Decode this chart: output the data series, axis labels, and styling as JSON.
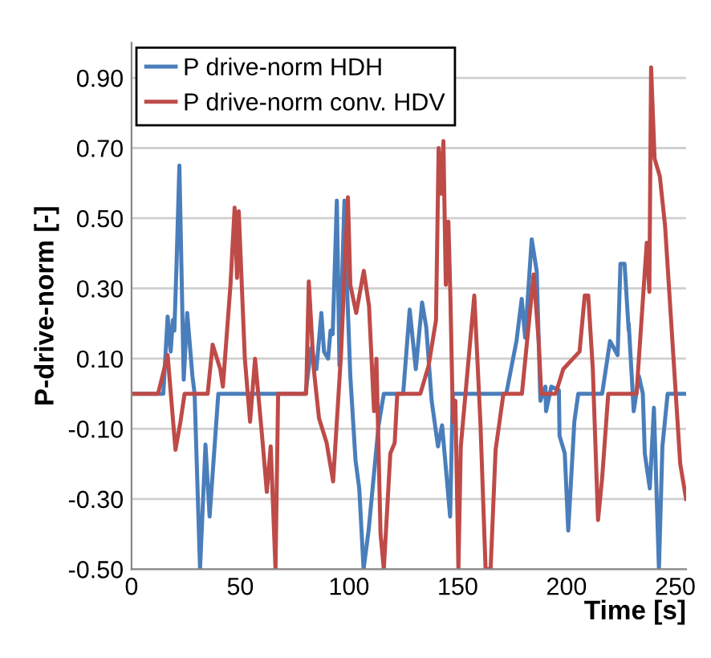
{
  "chart_data": {
    "type": "line",
    "xlabel": "Time [s]",
    "ylabel": "P-drive-norm [-]",
    "xlim": [
      0,
      255
    ],
    "xticks": [
      0,
      50,
      100,
      150,
      200,
      250
    ],
    "ylim": [
      -0.5,
      1.0
    ],
    "yticks": [
      {
        "value": 0.9,
        "label": "0.90"
      },
      {
        "value": 0.7,
        "label": "0.70"
      },
      {
        "value": 0.5,
        "label": "0.50"
      },
      {
        "value": 0.3,
        "label": "0.30"
      },
      {
        "value": 0.1,
        "label": "0.10"
      },
      {
        "value": -0.1,
        "label": "-0.10"
      },
      {
        "value": -0.3,
        "label": "-0.30"
      },
      {
        "value": -0.5,
        "label": "-0.50"
      }
    ],
    "grid": "y",
    "legend": "top left",
    "marker": "none",
    "line_style": "solid",
    "series": [
      {
        "name": "P drive-norm HDH",
        "color": "#4a7ebb",
        "x": [
          0,
          14.6,
          16.6,
          18,
          19,
          19.7,
          20.7,
          22,
          24,
          25.6,
          28,
          29,
          31.5,
          34,
          35.9,
          39.9,
          80,
          82.6,
          85,
          87.3,
          88.5,
          90.4,
          91.5,
          92.5,
          94.4,
          95.6,
          97.9,
          99,
          100.6,
          103,
          104.7,
          106.7,
          109,
          113.6,
          116,
          124.9,
          127.9,
          130.7,
          133.6,
          135.5,
          138,
          140.9,
          142.8,
          146.5,
          147.7,
          172.3,
          177,
          179.4,
          181,
          184,
          186.3,
          188,
          190.3,
          190.6,
          193,
          196.5,
          196.8,
          199.2,
          200.8,
          203.6,
          205.4,
          216.4,
          220,
          223.5,
          224.8,
          226.7,
          228.6,
          228.6,
          230,
          230.9,
          233.3,
          235.1,
          236,
          238.3,
          240.2,
          242.5,
          244.1,
          246.5,
          255
        ],
        "values": [
          0,
          0,
          0.22,
          0.12,
          0.21,
          0.18,
          0.37,
          0.65,
          0.04,
          0.23,
          0.05,
          0,
          -0.5,
          -0.145,
          -0.35,
          0,
          0,
          0.13,
          0.07,
          0.23,
          0.12,
          0.1,
          0.18,
          0.17,
          0.55,
          0.08,
          0.55,
          0.32,
          0.05,
          -0.19,
          -0.27,
          -0.5,
          -0.39,
          -0.09,
          0,
          0,
          0.24,
          0.07,
          0.26,
          0.19,
          -0.02,
          -0.15,
          -0.09,
          -0.35,
          0,
          0,
          0.15,
          0.27,
          0.16,
          0.44,
          0.35,
          -0.02,
          0.02,
          -0.05,
          0.02,
          0.01,
          -0.12,
          -0.17,
          -0.39,
          -0.08,
          0,
          0,
          0.15,
          0.11,
          0.37,
          0.37,
          0.18,
          0.2,
          0.05,
          -0.05,
          0.05,
          0,
          -0.17,
          -0.27,
          -0.04,
          -0.5,
          -0.15,
          0,
          0
        ]
      },
      {
        "name": "P drive-norm conv. HDV",
        "color": "#be4b48",
        "x": [
          0,
          12.2,
          16.6,
          20.2,
          22.5,
          24.4,
          35,
          37.3,
          40.8,
          42,
          45.5,
          47.4,
          48.5,
          49.3,
          52.1,
          54.5,
          56.8,
          60.3,
          62.2,
          64,
          66.2,
          67.4,
          80.3,
          81.5,
          83.8,
          86.2,
          89.7,
          92.7,
          96.3,
          99.5,
          100.6,
          103.3,
          106.8,
          109.2,
          111.5,
          112.6,
          114.5,
          116,
          119,
          121,
          122.2,
          132.8,
          136.6,
          140,
          141.2,
          142.4,
          143.4,
          144.5,
          145.7,
          146.6,
          147.8,
          148.9,
          150.3,
          151.4,
          157.6,
          160.4,
          162.8,
          165.1,
          167.4,
          171,
          179.5,
          184.9,
          187.2,
          188.4,
          195,
          198.5,
          206,
          208.4,
          210,
          212.1,
          214.5,
          216.4,
          219.2,
          232.2,
          236.9,
          238.1,
          238.9,
          240.5,
          242.9,
          245.3,
          248.8,
          252.3,
          255
        ],
        "values": [
          0,
          0,
          0.11,
          -0.16,
          -0.08,
          0,
          0,
          0.14,
          0.07,
          0.02,
          0.31,
          0.53,
          0.33,
          0.52,
          0.1,
          -0.08,
          0.1,
          -0.14,
          -0.28,
          -0.15,
          -0.5,
          0,
          0,
          0.32,
          0.07,
          -0.07,
          -0.14,
          -0.25,
          0.11,
          0.56,
          0.31,
          0.23,
          0.35,
          0.25,
          -0.05,
          0.1,
          -0.4,
          -0.5,
          -0.17,
          -0.14,
          0,
          0,
          0.08,
          0.21,
          0.7,
          0.57,
          0.72,
          0.31,
          0.49,
          0.28,
          -0.08,
          -0.02,
          -0.5,
          -0.15,
          0.28,
          -0.08,
          -0.5,
          -0.5,
          -0.16,
          0,
          0,
          0.34,
          0.15,
          0,
          0,
          0.07,
          0.12,
          0.28,
          0.28,
          0.07,
          -0.36,
          -0.24,
          0,
          0,
          0.43,
          0.29,
          0.93,
          0.67,
          0.62,
          0.48,
          0.14,
          -0.2,
          -0.3
        ]
      }
    ]
  }
}
